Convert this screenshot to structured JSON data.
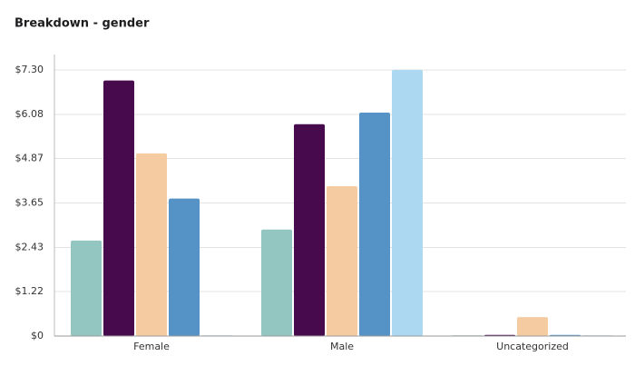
{
  "chart_data": {
    "type": "bar",
    "title": "Breakdown - gender",
    "categories": [
      "Female",
      "Male",
      "Uncategorized"
    ],
    "series": [
      {
        "color": "#93c6c0",
        "values": [
          2.62,
          2.92,
          0.02
        ]
      },
      {
        "color": "#470a4c",
        "values": [
          7.01,
          5.81,
          0.03
        ]
      },
      {
        "color": "#f5cba2",
        "values": [
          5.01,
          4.11,
          0.52
        ]
      },
      {
        "color": "#5592c6",
        "values": [
          3.77,
          6.13,
          0.03
        ]
      },
      {
        "color": "#acd8f2",
        "values": [
          0.02,
          7.3,
          0.02
        ]
      }
    ],
    "ylim": [
      0,
      7.3
    ],
    "yticks": [
      {
        "value": 0,
        "label": "$0"
      },
      {
        "value": 1.22,
        "label": "$1.22"
      },
      {
        "value": 2.43,
        "label": "$2.43"
      },
      {
        "value": 3.65,
        "label": "$3.65"
      },
      {
        "value": 4.87,
        "label": "$4.87"
      },
      {
        "value": 6.08,
        "label": "$6.08"
      },
      {
        "value": 7.3,
        "label": "$7.30"
      }
    ],
    "grid": true
  }
}
